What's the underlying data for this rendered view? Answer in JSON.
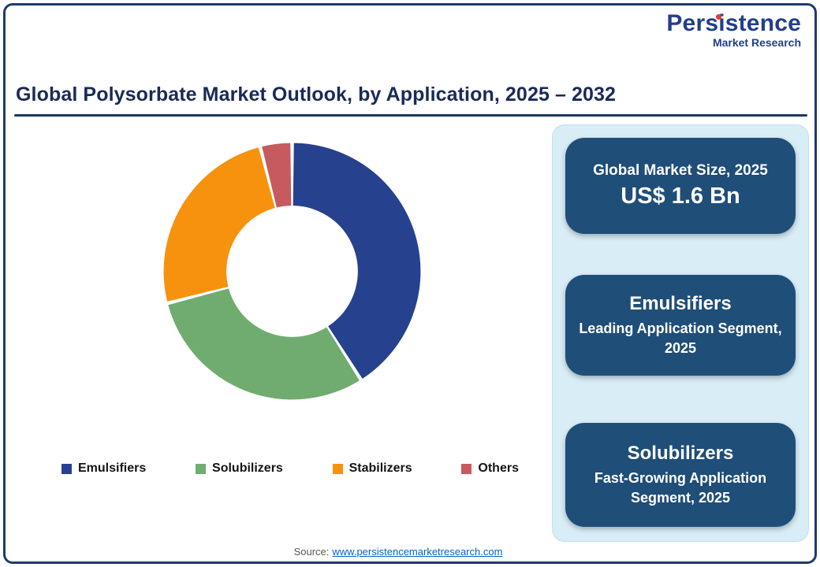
{
  "logo": {
    "name": "Persistence",
    "tagline": "Market Research"
  },
  "header": {
    "title": "Global Polysorbate Market Outlook, by Application, 2025 – 2032"
  },
  "chart_data": {
    "type": "pie",
    "style": "donut",
    "title": "Global Polysorbate Market Outlook, by Application, 2025 – 2032",
    "categories": [
      "Emulsifiers",
      "Solubilizers",
      "Stabilizers",
      "Others"
    ],
    "values": [
      41,
      30,
      25,
      4
    ],
    "colors": [
      "#26418E",
      "#70AC70",
      "#F6920D",
      "#C65A5F"
    ],
    "legend_position": "bottom",
    "start_angle_deg": 0,
    "direction": "clockwise"
  },
  "panel": {
    "boxes": [
      {
        "title": "Global Market Size, 2025",
        "value": "US$ 1.6 Bn"
      },
      {
        "title": "Emulsifiers",
        "subtitle": "Leading Application Segment, 2025"
      },
      {
        "title": "Solubilizers",
        "subtitle": "Fast-Growing Application Segment, 2025"
      }
    ]
  },
  "footer": {
    "source_label": "Source:",
    "source_link": "www.persistencemarketresearch.com"
  }
}
